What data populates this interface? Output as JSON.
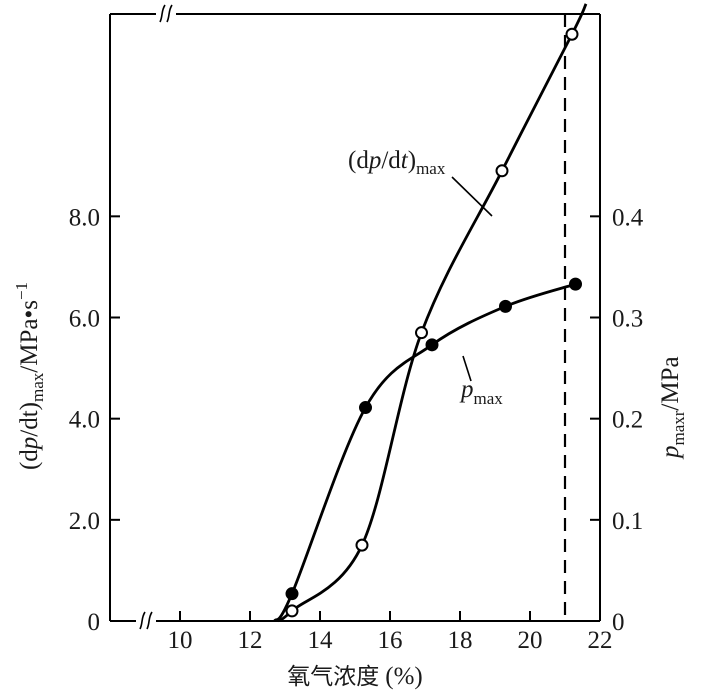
{
  "chart_data": {
    "type": "line",
    "x_axis": {
      "label_main": "氧气浓度",
      "label_unit": "(%)",
      "ticks": [
        10,
        12,
        14,
        16,
        18,
        20,
        22
      ],
      "range": [
        8,
        22
      ]
    },
    "y_left": {
      "label_pre": "(d",
      "label_p": "p",
      "label_mid": "/d",
      "label_t": "t",
      "label_post": ")",
      "label_sub": "max",
      "label_unit": "/MPa•s",
      "label_sup": "−1",
      "tick_labels": [
        "0",
        "2.0",
        "4.0",
        "6.0",
        "8.0"
      ],
      "ticks": [
        0,
        2,
        4,
        6,
        8
      ],
      "range": [
        0,
        12
      ]
    },
    "y_right": {
      "label_p": "p",
      "label_sub": "maxr",
      "label_unit": "/MPa",
      "tick_labels": [
        "0",
        "0.1",
        "0.2",
        "0.3",
        "0.4"
      ],
      "ticks": [
        0,
        0.1,
        0.2,
        0.3,
        0.4
      ],
      "range": [
        0,
        0.6
      ]
    },
    "series": [
      {
        "name": "(dp/dt)max",
        "label_pre": "(d",
        "label_p": "p",
        "label_mid": "/d",
        "label_t": "t",
        "label_post": ")",
        "label_sub": "max",
        "axis": "left",
        "marker": "open-circle",
        "points": [
          [
            13.2,
            0.2
          ],
          [
            15.2,
            1.5
          ],
          [
            16.9,
            5.7
          ],
          [
            19.2,
            8.9
          ],
          [
            21.2,
            11.6
          ]
        ],
        "curve_start": [
          12.8,
          0.0
        ],
        "curve_end": [
          21.6,
          12.2
        ]
      },
      {
        "name": "pmax",
        "label_p": "p",
        "label_sub": "max",
        "axis": "right",
        "marker": "filled-circle",
        "points": [
          [
            13.2,
            0.027
          ],
          [
            15.3,
            0.211
          ],
          [
            17.2,
            0.273
          ],
          [
            19.3,
            0.311
          ],
          [
            21.3,
            0.333
          ]
        ],
        "curve_start": [
          12.7,
          0.0
        ]
      }
    ],
    "reference_line": {
      "x": 21.0,
      "style": "dashed"
    },
    "grid": false,
    "axis_breaks": [
      "bottom-left",
      "top-left"
    ]
  }
}
